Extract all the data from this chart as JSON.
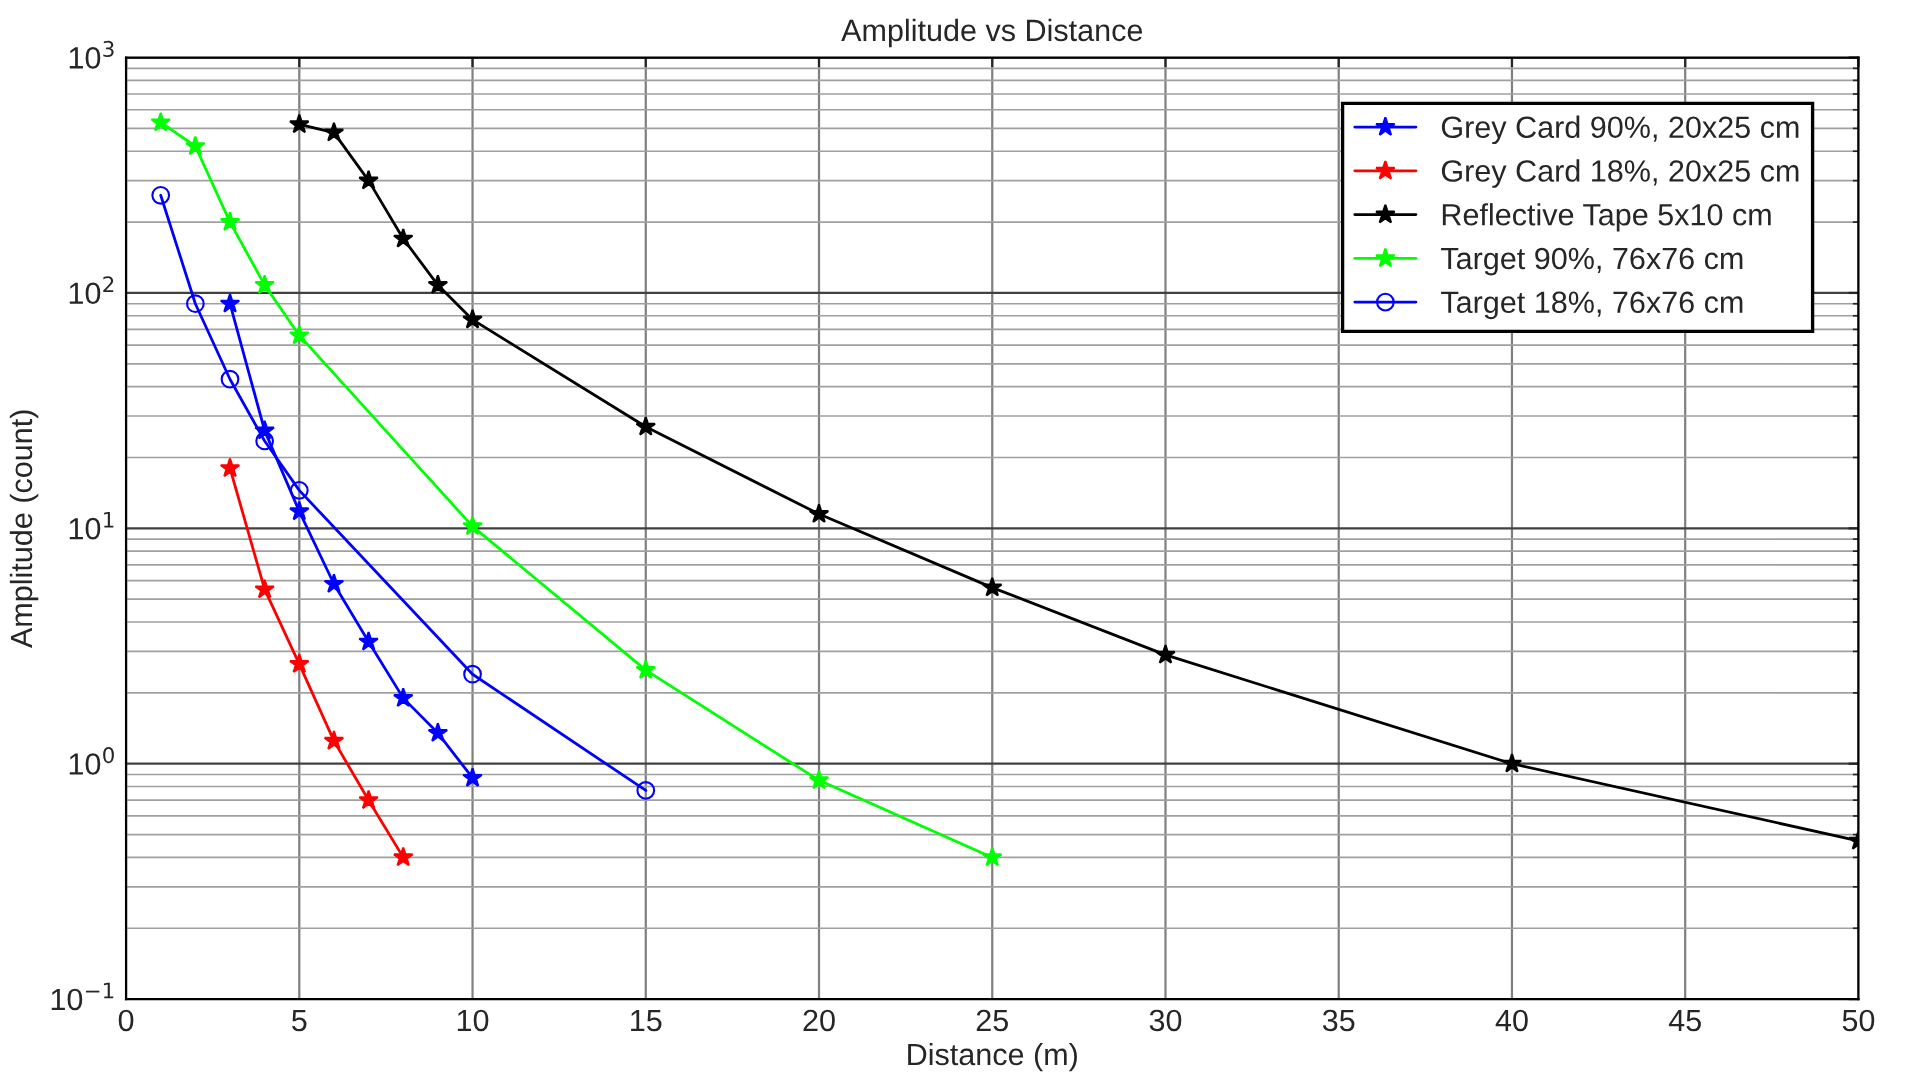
{
  "chart_data": {
    "type": "line",
    "title": "Amplitude vs Distance",
    "xlabel": "Distance (m)",
    "ylabel": "Amplitude (count)",
    "log": "y",
    "grid": true,
    "legend": "top right",
    "xlim": [
      0,
      50
    ],
    "xticks": [
      0,
      5,
      10,
      15,
      20,
      25,
      30,
      35,
      40,
      45,
      50
    ],
    "ylim": [
      0.1,
      1000
    ],
    "yticks": [
      {
        "value": 0.1,
        "label": "10$^{−1}$"
      },
      {
        "value": 1,
        "label": "10$^{0}$"
      },
      {
        "value": 10,
        "label": "10$^{1}$"
      },
      {
        "value": 100,
        "label": "10$^{2}$"
      },
      {
        "value": 1000,
        "label": "10$^{3}$"
      }
    ],
    "series": [
      {
        "name": "Grey Card 90%, 20x25 cm",
        "color": "#0000ff",
        "marker": "star",
        "x": [
          3,
          4,
          5,
          6,
          7,
          8,
          9,
          10
        ],
        "values": [
          90,
          26,
          11.8,
          5.8,
          3.3,
          1.9,
          1.35,
          0.87
        ]
      },
      {
        "name": "Grey Card 18%, 20x25 cm",
        "color": "#ff0000",
        "marker": "star",
        "x": [
          3,
          4,
          5,
          6,
          7,
          8
        ],
        "values": [
          18,
          5.5,
          2.65,
          1.25,
          0.7,
          0.4
        ]
      },
      {
        "name": "Reflective Tape 5x10 cm",
        "color": "#000000",
        "marker": "star",
        "x": [
          5,
          6,
          7,
          8,
          9,
          10,
          15,
          20,
          25,
          30,
          40,
          50
        ],
        "values": [
          520,
          480,
          300,
          170,
          108,
          77,
          27,
          11.5,
          5.6,
          2.9,
          1.0,
          0.47
        ]
      },
      {
        "name": "Target 90%, 76x76 cm",
        "color": "#00ff00",
        "marker": "star",
        "x": [
          1,
          2,
          3,
          4,
          5,
          10,
          15,
          20,
          25
        ],
        "values": [
          530,
          420,
          200,
          108,
          66,
          10.2,
          2.5,
          0.85,
          0.4
        ]
      },
      {
        "name": "Target 18%, 76x76 cm",
        "color": "#0000ff",
        "marker": "circle",
        "x": [
          1,
          2,
          3,
          4,
          5,
          10,
          15
        ],
        "values": [
          260,
          90,
          43,
          23.5,
          14.5,
          2.4,
          0.77
        ]
      }
    ]
  }
}
